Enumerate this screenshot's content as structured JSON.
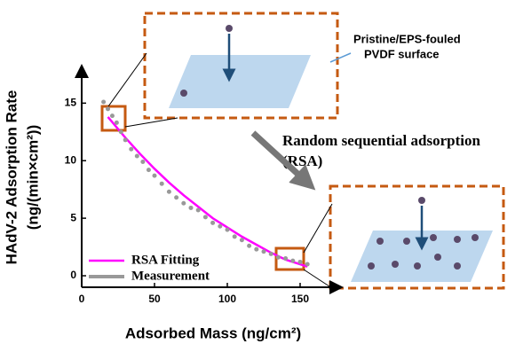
{
  "chart_data": {
    "type": "line",
    "x_label": "Adsorbed Mass (ng/cm²)",
    "y_label": "HAdV-2 Adsorption Rate",
    "y_label_units": "(ng/(min×cm²))",
    "xlim": [
      0,
      175
    ],
    "ylim": [
      -1,
      17.8
    ],
    "xticks": [
      0,
      50,
      100,
      150
    ],
    "yticks": [
      0,
      5,
      10,
      15
    ],
    "legend": "lower left",
    "series": [
      {
        "name": "RSA Fitting",
        "color": "#ff00ff",
        "mode": "line",
        "x": [
          18,
          30,
          40,
          50,
          60,
          70,
          80,
          90,
          100,
          110,
          120,
          130,
          140,
          150,
          155
        ],
        "values": [
          13.8,
          12,
          10.6,
          9.3,
          8.1,
          7,
          6,
          5,
          4.2,
          3.4,
          2.7,
          2,
          1.4,
          1,
          0.8
        ]
      },
      {
        "name": "Measurement",
        "color": "#999999",
        "mode": "markers",
        "x": [
          15,
          18,
          21,
          24,
          27,
          30,
          34,
          38,
          42,
          46,
          50,
          55,
          60,
          65,
          70,
          75,
          80,
          85,
          90,
          95,
          100,
          105,
          110,
          115,
          120,
          125,
          130,
          135,
          140,
          145,
          150,
          155
        ],
        "values": [
          15.1,
          14.5,
          13.9,
          13.3,
          12.5,
          11.8,
          11,
          10.4,
          9.9,
          9.2,
          8.7,
          8,
          7.3,
          6.8,
          6.3,
          5.9,
          5.7,
          5.1,
          4.6,
          4.3,
          4,
          3.4,
          3.1,
          2.6,
          2.3,
          2.1,
          1.9,
          1.6,
          1.5,
          1.3,
          1.2,
          1
        ]
      }
    ],
    "annotations": [
      "Pristine/EPS-fouled",
      "PVDF surface",
      "Random sequential adsorption",
      "(RSA)"
    ]
  }
}
